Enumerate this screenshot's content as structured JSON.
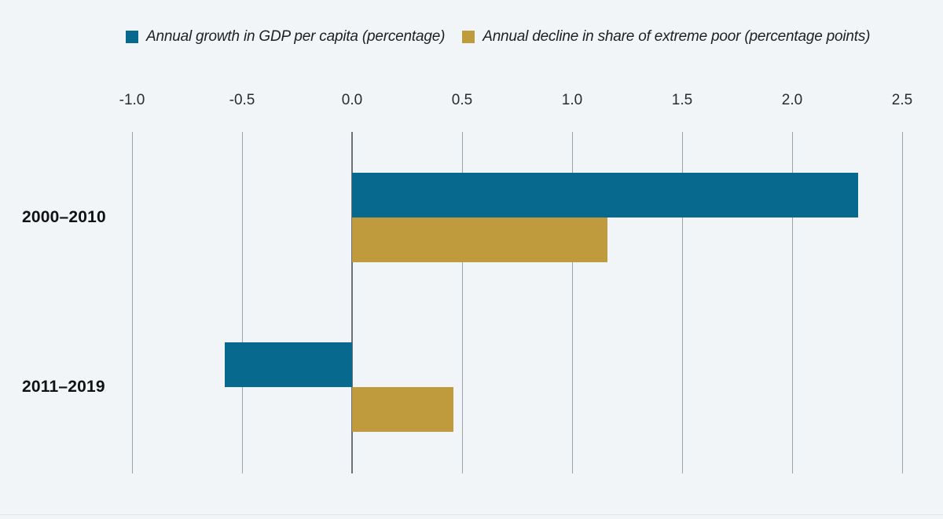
{
  "page": {
    "background": "#f1f5f8"
  },
  "chart_data": {
    "type": "bar",
    "orientation": "horizontal",
    "title": "",
    "xlabel": "",
    "ylabel": "",
    "categories": [
      "2000–2010",
      "2011–2019"
    ],
    "series": [
      {
        "id": "gdp-growth",
        "name": "Annual growth in GDP per capita (percentage)",
        "color": "#07698d",
        "values": [
          2.3,
          -0.58
        ]
      },
      {
        "id": "poor-decline",
        "name": "Annual decline in share of extreme poor (percentage points)",
        "color": "#bf9b3d",
        "values": [
          1.16,
          0.46
        ]
      }
    ],
    "xlim": [
      -1.0,
      2.5
    ],
    "x_ticks": [
      -1.0,
      -0.5,
      0.0,
      0.5,
      1.0,
      1.5,
      2.0,
      2.5
    ],
    "x_tick_labels": [
      "-1.0",
      "-0.5",
      "0.0",
      "0.5",
      "1.0",
      "1.5",
      "2.0",
      "2.5"
    ],
    "grid": true,
    "axis_position": "top",
    "legend_position": "top",
    "colors": {
      "gridline": "#9aa3ab",
      "zero_line": "#68717a",
      "tick_text": "#2b2b2b",
      "category_text": "#111111",
      "legend_text": "#1f1f1f"
    }
  }
}
